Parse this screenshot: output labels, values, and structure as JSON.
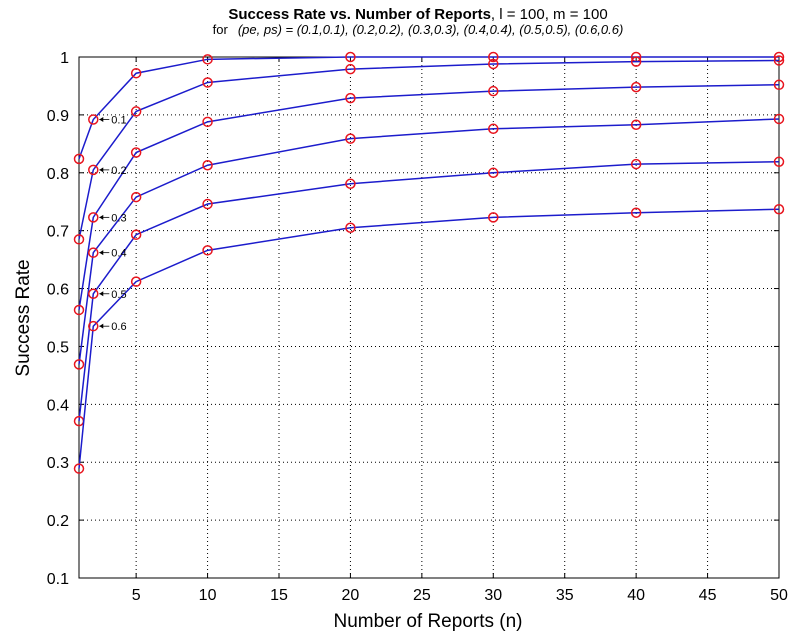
{
  "chart_data": {
    "type": "line",
    "title": "Success Rate vs. Number of Reports",
    "title_params": ", l = 100, m = 100",
    "subtitle_prefix": "for",
    "subtitle": "(pe, ps) = (0.1,0.1), (0.2,0.2), (0.3,0.3), (0.4,0.4), (0.5,0.5), (0.6,0.6)",
    "xlabel": "Number of Reports (n)",
    "ylabel": "Success Rate",
    "xlim": [
      1,
      50
    ],
    "ylim": [
      0.1,
      1.0
    ],
    "xticks": [
      5,
      10,
      15,
      20,
      25,
      30,
      35,
      40,
      45,
      50
    ],
    "yticks": [
      0.1,
      0.2,
      0.3,
      0.4,
      0.5,
      0.6,
      0.7,
      0.8,
      0.9,
      1
    ],
    "grid": true,
    "line_color": "#1c1ccc",
    "marker_color": "#e8141e",
    "x": [
      1,
      2,
      5,
      10,
      20,
      30,
      40,
      50
    ],
    "series": [
      {
        "label": "0.1",
        "values": [
          0.824,
          0.892,
          0.972,
          0.996,
          1.0,
          1.0,
          1.0,
          1.0
        ]
      },
      {
        "label": "0.2",
        "values": [
          0.685,
          0.805,
          0.906,
          0.956,
          0.979,
          0.988,
          0.992,
          0.994
        ]
      },
      {
        "label": "0.3",
        "values": [
          0.563,
          0.723,
          0.835,
          0.888,
          0.929,
          0.941,
          0.948,
          0.952
        ]
      },
      {
        "label": "0.4",
        "values": [
          0.469,
          0.662,
          0.758,
          0.813,
          0.859,
          0.876,
          0.883,
          0.893
        ]
      },
      {
        "label": "0.5",
        "values": [
          0.371,
          0.591,
          0.693,
          0.746,
          0.781,
          0.8,
          0.815,
          0.819
        ]
      },
      {
        "label": "0.6",
        "values": [
          0.289,
          0.535,
          0.612,
          0.666,
          0.705,
          0.723,
          0.731,
          0.737
        ]
      }
    ]
  }
}
